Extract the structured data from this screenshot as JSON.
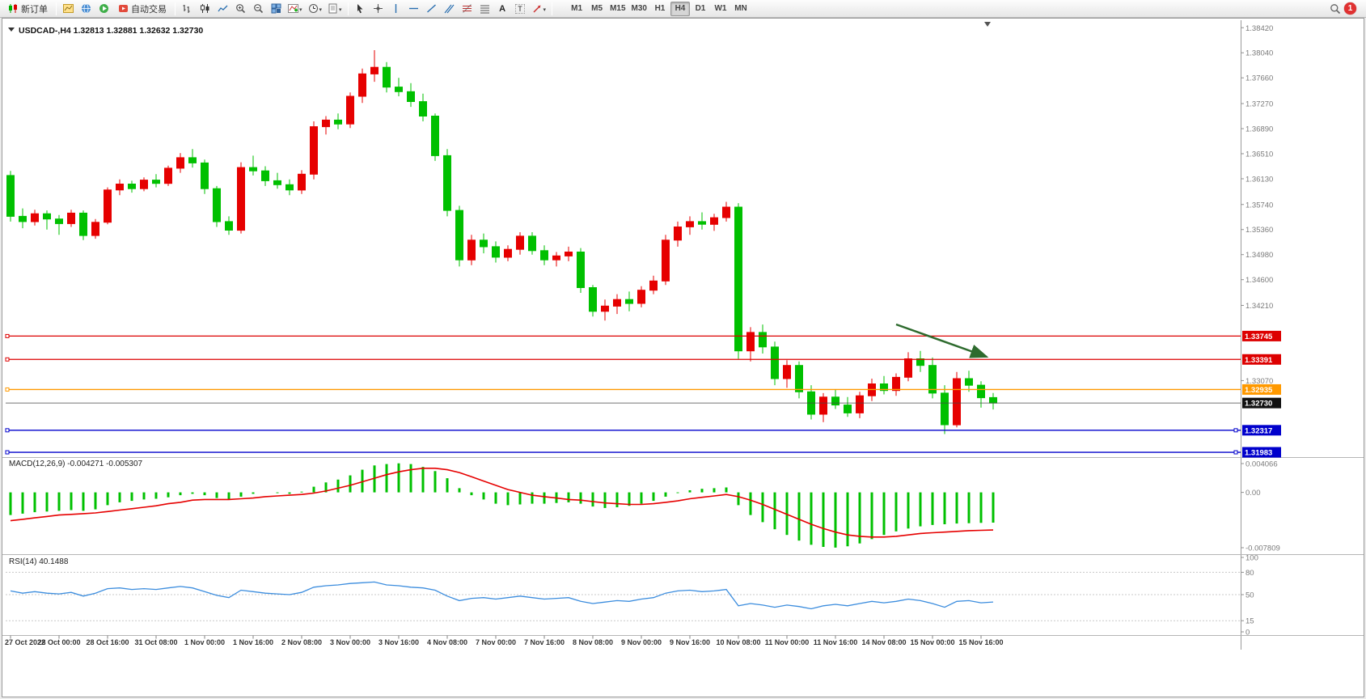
{
  "toolbar": {
    "new_order": "新订单",
    "auto_trading": "自动交易",
    "timeframes": [
      "M1",
      "M5",
      "M15",
      "M30",
      "H1",
      "H4",
      "D1",
      "W1",
      "MN"
    ],
    "active_timeframe": "H4",
    "notification_badge": "1"
  },
  "chart": {
    "title": {
      "symbol": "USDCAD-,H4",
      "open": "1.32813",
      "high": "1.32881",
      "low": "1.32632",
      "close": "1.32730"
    },
    "price_axis": [
      "1.38420",
      "1.38040",
      "1.37660",
      "1.37270",
      "1.36890",
      "1.36510",
      "1.36130",
      "1.35740",
      "1.35360",
      "1.34980",
      "1.34600",
      "1.34210",
      "1.33070"
    ],
    "hlines": [
      {
        "price": 1.33745,
        "label": "1.33745",
        "color": "#dd0000",
        "handles": "left"
      },
      {
        "price": 1.33391,
        "label": "1.33391",
        "color": "#dd0000",
        "handles": "left"
      },
      {
        "price": 1.32935,
        "label": "1.32935",
        "color": "#ff9900",
        "handles": "left"
      },
      {
        "price": 1.32317,
        "label": "1.32317",
        "color": "#0000cc",
        "handles": "both"
      },
      {
        "price": 1.31983,
        "label": "1.31983",
        "color": "#0000cc",
        "handles": "both"
      }
    ],
    "current_price": {
      "value": 1.3273,
      "label": "1.32730",
      "color": "#111111"
    },
    "annotations": [
      {
        "type": "arrow",
        "from": [
          1105,
          378
        ],
        "to": [
          1217,
          418
        ],
        "color": "#2e6b2e"
      }
    ]
  },
  "macd": {
    "name": "MACD(12,26,9)",
    "value_main": "-0.004271",
    "value_signal": "-0.005307",
    "axis": [
      "0.004066",
      "0.00",
      "-0.007809"
    ]
  },
  "rsi": {
    "name": "RSI(14)",
    "value": "40.1488",
    "axis": [
      "100",
      "80",
      "50",
      "15",
      "0"
    ],
    "levels": [
      80,
      50,
      15
    ]
  },
  "colors": {
    "up": "#e60000",
    "down": "#00c000",
    "macd_histogram": "#00c000",
    "macd_signal": "#e60000",
    "rsi_line": "#3c8dde",
    "axis_text": "#7a7a7a",
    "arrow": "#2e6b2e"
  },
  "chart_data": {
    "type": "candlestick",
    "symbol": "USDCAD",
    "period": "H4",
    "bars_per_label": 4,
    "time_labels": [
      "27 Oct 2022",
      "28 Oct 00:00",
      "28 Oct 16:00",
      "31 Oct 08:00",
      "1 Nov 00:00",
      "1 Nov 16:00",
      "2 Nov 08:00",
      "3 Nov 00:00",
      "3 Nov 16:00",
      "4 Nov 08:00",
      "7 Nov 00:00",
      "7 Nov 16:00",
      "8 Nov 08:00",
      "9 Nov 00:00",
      "9 Nov 16:00",
      "10 Nov 08:00",
      "11 Nov 00:00",
      "11 Nov 16:00",
      "14 Nov 08:00",
      "15 Nov 00:00",
      "15 Nov 16:00"
    ],
    "bars": [
      [
        1.3618,
        1.3625,
        1.3548,
        1.3556
      ],
      [
        1.3556,
        1.3568,
        1.3538,
        1.3548
      ],
      [
        1.3548,
        1.3566,
        1.3542,
        1.356
      ],
      [
        1.356,
        1.3565,
        1.3536,
        1.3552
      ],
      [
        1.3552,
        1.3558,
        1.3528,
        1.3545
      ],
      [
        1.3545,
        1.3566,
        1.354,
        1.3561
      ],
      [
        1.3561,
        1.3565,
        1.352,
        1.3527
      ],
      [
        1.3527,
        1.3552,
        1.3522,
        1.3547
      ],
      [
        1.3547,
        1.36,
        1.3544,
        1.3596
      ],
      [
        1.3596,
        1.3612,
        1.3588,
        1.3605
      ],
      [
        1.3605,
        1.361,
        1.3592,
        1.3598
      ],
      [
        1.3598,
        1.3615,
        1.3594,
        1.3611
      ],
      [
        1.3611,
        1.362,
        1.36,
        1.3606
      ],
      [
        1.3606,
        1.3633,
        1.3602,
        1.3629
      ],
      [
        1.3629,
        1.3652,
        1.3622,
        1.3645
      ],
      [
        1.3645,
        1.3658,
        1.363,
        1.3637
      ],
      [
        1.3637,
        1.3642,
        1.359,
        1.3598
      ],
      [
        1.3598,
        1.3602,
        1.354,
        1.3548
      ],
      [
        1.3548,
        1.3556,
        1.3528,
        1.3535
      ],
      [
        1.3535,
        1.3638,
        1.353,
        1.363
      ],
      [
        1.363,
        1.3648,
        1.3618,
        1.3625
      ],
      [
        1.3625,
        1.3632,
        1.3602,
        1.361
      ],
      [
        1.361,
        1.3622,
        1.3598,
        1.3604
      ],
      [
        1.3604,
        1.3612,
        1.3588,
        1.3596
      ],
      [
        1.3596,
        1.3626,
        1.359,
        1.362
      ],
      [
        1.362,
        1.37,
        1.3612,
        1.3692
      ],
      [
        1.3692,
        1.3708,
        1.368,
        1.3702
      ],
      [
        1.3702,
        1.3712,
        1.3688,
        1.3696
      ],
      [
        1.3696,
        1.3744,
        1.369,
        1.3738
      ],
      [
        1.3738,
        1.378,
        1.3728,
        1.3772
      ],
      [
        1.3772,
        1.3808,
        1.376,
        1.3782
      ],
      [
        1.3782,
        1.379,
        1.3744,
        1.3752
      ],
      [
        1.3752,
        1.3766,
        1.3738,
        1.3745
      ],
      [
        1.3745,
        1.3758,
        1.3722,
        1.373
      ],
      [
        1.373,
        1.3742,
        1.37,
        1.3708
      ],
      [
        1.3708,
        1.3712,
        1.364,
        1.3648
      ],
      [
        1.3648,
        1.3658,
        1.3556,
        1.3565
      ],
      [
        1.3565,
        1.3572,
        1.348,
        1.349
      ],
      [
        1.349,
        1.3528,
        1.3482,
        1.352
      ],
      [
        1.352,
        1.353,
        1.35,
        1.351
      ],
      [
        1.351,
        1.3518,
        1.3486,
        1.3494
      ],
      [
        1.3494,
        1.3512,
        1.3488,
        1.3506
      ],
      [
        1.3506,
        1.3532,
        1.3498,
        1.3526
      ],
      [
        1.3526,
        1.3532,
        1.3498,
        1.3504
      ],
      [
        1.3504,
        1.3512,
        1.3482,
        1.349
      ],
      [
        1.349,
        1.3502,
        1.348,
        1.3496
      ],
      [
        1.3496,
        1.351,
        1.3488,
        1.3502
      ],
      [
        1.3502,
        1.3508,
        1.344,
        1.3448
      ],
      [
        1.3448,
        1.3452,
        1.3404,
        1.3412
      ],
      [
        1.3412,
        1.343,
        1.3398,
        1.342
      ],
      [
        1.342,
        1.3438,
        1.3408,
        1.343
      ],
      [
        1.343,
        1.3442,
        1.3412,
        1.3424
      ],
      [
        1.3424,
        1.345,
        1.3418,
        1.3444
      ],
      [
        1.3444,
        1.3466,
        1.3438,
        1.3458
      ],
      [
        1.3458,
        1.3528,
        1.3452,
        1.352
      ],
      [
        1.352,
        1.3548,
        1.351,
        1.354
      ],
      [
        1.354,
        1.3556,
        1.3528,
        1.3548
      ],
      [
        1.3548,
        1.3562,
        1.3536,
        1.3544
      ],
      [
        1.3544,
        1.356,
        1.3534,
        1.3554
      ],
      [
        1.3554,
        1.3578,
        1.3548,
        1.357
      ],
      [
        1.357,
        1.3576,
        1.334,
        1.3352
      ],
      [
        1.3352,
        1.3388,
        1.3336,
        1.338
      ],
      [
        1.338,
        1.3392,
        1.3348,
        1.3358
      ],
      [
        1.3358,
        1.3366,
        1.33,
        1.331
      ],
      [
        1.331,
        1.3338,
        1.3296,
        1.333
      ],
      [
        1.333,
        1.3336,
        1.328,
        1.329
      ],
      [
        1.329,
        1.33,
        1.3248,
        1.3256
      ],
      [
        1.3256,
        1.3288,
        1.3244,
        1.3282
      ],
      [
        1.3282,
        1.3294,
        1.3264,
        1.327
      ],
      [
        1.327,
        1.3282,
        1.3252,
        1.3258
      ],
      [
        1.3258,
        1.329,
        1.325,
        1.3284
      ],
      [
        1.3284,
        1.331,
        1.3276,
        1.3302
      ],
      [
        1.3302,
        1.3314,
        1.3286,
        1.3292
      ],
      [
        1.3292,
        1.3318,
        1.3284,
        1.3312
      ],
      [
        1.3312,
        1.335,
        1.3306,
        1.334
      ],
      [
        1.334,
        1.3352,
        1.332,
        1.333
      ],
      [
        1.333,
        1.3342,
        1.328,
        1.3288
      ],
      [
        1.3288,
        1.33,
        1.3226,
        1.324
      ],
      [
        1.324,
        1.332,
        1.3236,
        1.331
      ],
      [
        1.331,
        1.3322,
        1.329,
        1.33
      ],
      [
        1.33,
        1.3306,
        1.3266,
        1.3281
      ],
      [
        1.32813,
        1.32881,
        1.32632,
        1.3273
      ]
    ],
    "macd": {
      "histogram": [
        -0.0032,
        -0.003,
        -0.0028,
        -0.0027,
        -0.0026,
        -0.0025,
        -0.0026,
        -0.0024,
        -0.0018,
        -0.0014,
        -0.0012,
        -0.001,
        -0.0009,
        -0.0007,
        -0.0004,
        -0.0002,
        -0.0004,
        -0.0008,
        -0.001,
        -0.0006,
        -0.0002,
        0.0,
        -0.0001,
        -0.0002,
        0.0001,
        0.0008,
        0.0014,
        0.0018,
        0.0024,
        0.0032,
        0.0038,
        0.004,
        0.0041,
        0.004,
        0.0036,
        0.003,
        0.002,
        0.0006,
        -0.0004,
        -0.001,
        -0.0016,
        -0.0018,
        -0.0017,
        -0.0016,
        -0.0016,
        -0.0015,
        -0.0014,
        -0.0016,
        -0.002,
        -0.0022,
        -0.0021,
        -0.0019,
        -0.0016,
        -0.0012,
        -0.0006,
        -0.0001,
        0.0003,
        0.0005,
        0.0006,
        0.0007,
        -0.0018,
        -0.0032,
        -0.0042,
        -0.0052,
        -0.006,
        -0.0068,
        -0.0074,
        -0.0077,
        -0.0078,
        -0.0076,
        -0.0072,
        -0.0066,
        -0.006,
        -0.0055,
        -0.0051,
        -0.0048,
        -0.0046,
        -0.0045,
        -0.0044,
        -0.00435,
        -0.0043,
        -0.004271
      ],
      "signal": [
        -0.004,
        -0.0038,
        -0.0036,
        -0.0034,
        -0.0032,
        -0.0031,
        -0.003,
        -0.0029,
        -0.0027,
        -0.0025,
        -0.0023,
        -0.0021,
        -0.0019,
        -0.0016,
        -0.0014,
        -0.0011,
        -0.001,
        -0.001,
        -0.001,
        -0.0009,
        -0.0008,
        -0.0006,
        -0.0005,
        -0.0004,
        -0.0003,
        -0.0001,
        0.0002,
        0.0006,
        0.001,
        0.0015,
        0.002,
        0.0025,
        0.0029,
        0.0032,
        0.0034,
        0.0034,
        0.0032,
        0.0028,
        0.0022,
        0.0016,
        0.001,
        0.0004,
        0.0,
        -0.0004,
        -0.0006,
        -0.0008,
        -0.001,
        -0.0011,
        -0.0013,
        -0.0015,
        -0.0016,
        -0.0017,
        -0.0017,
        -0.0016,
        -0.0014,
        -0.0012,
        -0.0009,
        -0.0007,
        -0.0005,
        -0.0003,
        -0.0006,
        -0.0011,
        -0.0017,
        -0.0024,
        -0.0031,
        -0.0038,
        -0.0045,
        -0.0051,
        -0.0056,
        -0.006,
        -0.0062,
        -0.0063,
        -0.0063,
        -0.0062,
        -0.006,
        -0.0058,
        -0.0057,
        -0.0056,
        -0.0055,
        -0.0054,
        -0.00535,
        -0.005307
      ],
      "axis_max": 0.004066,
      "axis_min": -0.007809
    },
    "rsi": [
      55,
      52,
      54,
      52,
      51,
      53,
      48,
      52,
      58,
      59,
      57,
      58,
      57,
      59,
      61,
      59,
      54,
      49,
      46,
      56,
      54,
      52,
      51,
      50,
      53,
      60,
      62,
      63,
      65,
      66,
      67,
      63,
      62,
      60,
      59,
      56,
      48,
      42,
      45,
      46,
      44,
      46,
      48,
      46,
      44,
      45,
      46,
      41,
      38,
      40,
      42,
      41,
      44,
      46,
      52,
      55,
      56,
      54,
      55,
      57,
      35,
      38,
      36,
      33,
      36,
      34,
      31,
      35,
      37,
      35,
      38,
      41,
      39,
      41,
      44,
      42,
      38,
      33,
      41,
      42,
      39,
      40.1488
    ]
  }
}
